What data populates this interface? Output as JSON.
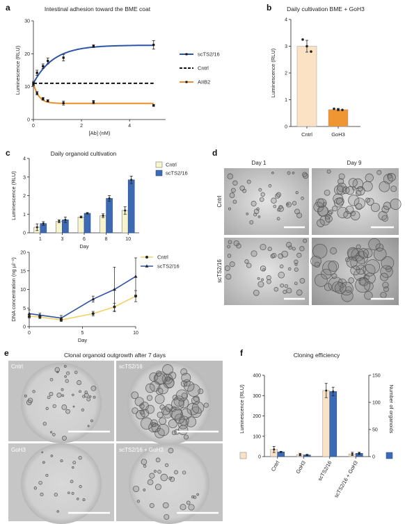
{
  "colors": {
    "scTS": "#2c54a6",
    "cntrl_line": "#111111",
    "aiib2": "#ee8e2a",
    "bar_cntrl_light": "#fbe2c5",
    "bar_goh3": "#ef9633",
    "bar_cntrl_c": "#f8f4cc",
    "bar_blue": "#3c6ab4",
    "dna_cntrl": "#f2d168"
  },
  "panels": {
    "a": {
      "label": "a"
    },
    "b": {
      "label": "b"
    },
    "c": {
      "label": "c"
    },
    "d": {
      "label": "d",
      "col1": "Day 1",
      "col2": "Day 9",
      "row1": "Cntrl",
      "row2": "scTS2/16"
    },
    "e": {
      "label": "e",
      "title": "Clonal organoid outgrowth after 7 days",
      "tl": "Cntrl",
      "tr": "scTS2/16",
      "bl": "GoH3",
      "br": "scTS2/16 + GoH3"
    },
    "f": {
      "label": "f"
    }
  },
  "chart_data": [
    {
      "id": "a",
      "type": "line",
      "title": "Intestinal adhesion toward the BME coat",
      "xlabel": "[Ab] (nM)",
      "ylabel": "Luminescence (RLU)",
      "xlim": [
        0,
        5.5
      ],
      "ylim": [
        0,
        30
      ],
      "xticks": [
        0,
        2,
        4
      ],
      "yticks": [
        0,
        10,
        20,
        30
      ],
      "series": [
        {
          "name": "scTS2/16",
          "x": [
            0,
            0.15,
            0.4,
            0.6,
            1.25,
            2.5,
            5
          ],
          "y": [
            11,
            14.2,
            16.2,
            17.8,
            18.8,
            22.3,
            22.7
          ],
          "err": [
            0.6,
            0.8,
            0.7,
            0.9,
            1.0,
            0.4,
            1.3
          ],
          "fit": {
            "a": 11,
            "b": 22.6,
            "k": 1.2
          }
        },
        {
          "name": "Cntrl",
          "x": [
            0,
            5
          ],
          "y": [
            11,
            11
          ],
          "dashed": true
        },
        {
          "name": "AIIB2",
          "x": [
            0,
            0.15,
            0.4,
            0.6,
            1.25,
            2.5,
            5
          ],
          "y": [
            10.8,
            8,
            6.3,
            5.7,
            5,
            5.3,
            4.3
          ],
          "err": [
            0.5,
            0.5,
            0.4,
            0.3,
            0.6,
            0.5,
            0.3
          ],
          "fit": {
            "a": 11,
            "b": 4.9,
            "k": 4.5
          }
        }
      ]
    },
    {
      "id": "b",
      "type": "bar",
      "title": "Daily cultivation BME + GoH3",
      "ylabel": "Luminescence (RLU)",
      "categories": [
        "Cntrl",
        "GoH3"
      ],
      "values": [
        3.0,
        0.63
      ],
      "err": [
        0.22,
        0.04
      ],
      "points": [
        [
          3.25,
          3.0,
          2.8
        ],
        [
          0.66,
          0.64,
          0.62
        ]
      ],
      "ylim": [
        0,
        4
      ],
      "yticks": [
        0,
        1,
        2,
        3,
        4
      ]
    },
    {
      "id": "c1",
      "type": "bar",
      "title": "Daily organoid cultivation",
      "xlabel": "Day",
      "ylabel": "Luminescence (RLU)",
      "categories": [
        "1",
        "3",
        "6",
        "8",
        "10"
      ],
      "ylim": [
        0,
        4
      ],
      "yticks": [
        0,
        1,
        2,
        3,
        4
      ],
      "series": [
        {
          "name": "Cntrl",
          "values": [
            0.3,
            0.62,
            0.85,
            0.92,
            1.2
          ],
          "err": [
            0.18,
            0.08,
            0.05,
            0.1,
            0.2
          ]
        },
        {
          "name": "scTS2/16",
          "values": [
            0.5,
            0.7,
            1.05,
            1.85,
            2.85
          ],
          "err": [
            0.1,
            0.15,
            0.04,
            0.15,
            0.2
          ]
        }
      ]
    },
    {
      "id": "c2",
      "type": "line",
      "xlabel": "Day",
      "ylabel": "DNA concentration (ng µl⁻¹)",
      "xlim": [
        0,
        10
      ],
      "ylim": [
        0,
        20
      ],
      "xticks": [
        0,
        5,
        10
      ],
      "yticks": [
        0,
        5,
        10,
        15,
        20
      ],
      "series": [
        {
          "name": "Cntrl",
          "x": [
            0,
            1,
            3,
            6,
            8,
            10
          ],
          "y": [
            2.8,
            2.6,
            1.8,
            3.5,
            5.3,
            8.2
          ],
          "err": [
            0.5,
            0.4,
            0.4,
            0.6,
            1.0,
            1.5
          ]
        },
        {
          "name": "scTS2/16",
          "x": [
            0,
            1,
            3,
            6,
            8,
            10
          ],
          "y": [
            3.5,
            3.1,
            2.3,
            7.4,
            10.0,
            13.5
          ],
          "err": [
            1.0,
            0.5,
            0.7,
            0.8,
            6.0,
            5.0
          ]
        }
      ]
    },
    {
      "id": "f",
      "type": "bar",
      "title": "Cloning efficiency",
      "ylabel": "Luminescence (RLU)",
      "ylabel2": "Number of organoids",
      "categories": [
        "Cntrl",
        "GoH3",
        "scTS2/16",
        "scTS2/16 + GoH3"
      ],
      "ylim": [
        0,
        400
      ],
      "yticks": [
        0,
        100,
        200,
        300,
        400
      ],
      "y2lim": [
        0,
        150
      ],
      "y2ticks": [
        0,
        50,
        100,
        150
      ],
      "series": [
        {
          "name": "Luminescence",
          "axis": "left",
          "values": [
            35,
            10,
            325,
            13
          ],
          "err": [
            15,
            6,
            35,
            8
          ]
        },
        {
          "name": "Number of organoids",
          "axis": "right",
          "values": [
            8.5,
            3,
            120,
            6
          ],
          "err": [
            1,
            1,
            8,
            2
          ]
        }
      ]
    }
  ]
}
